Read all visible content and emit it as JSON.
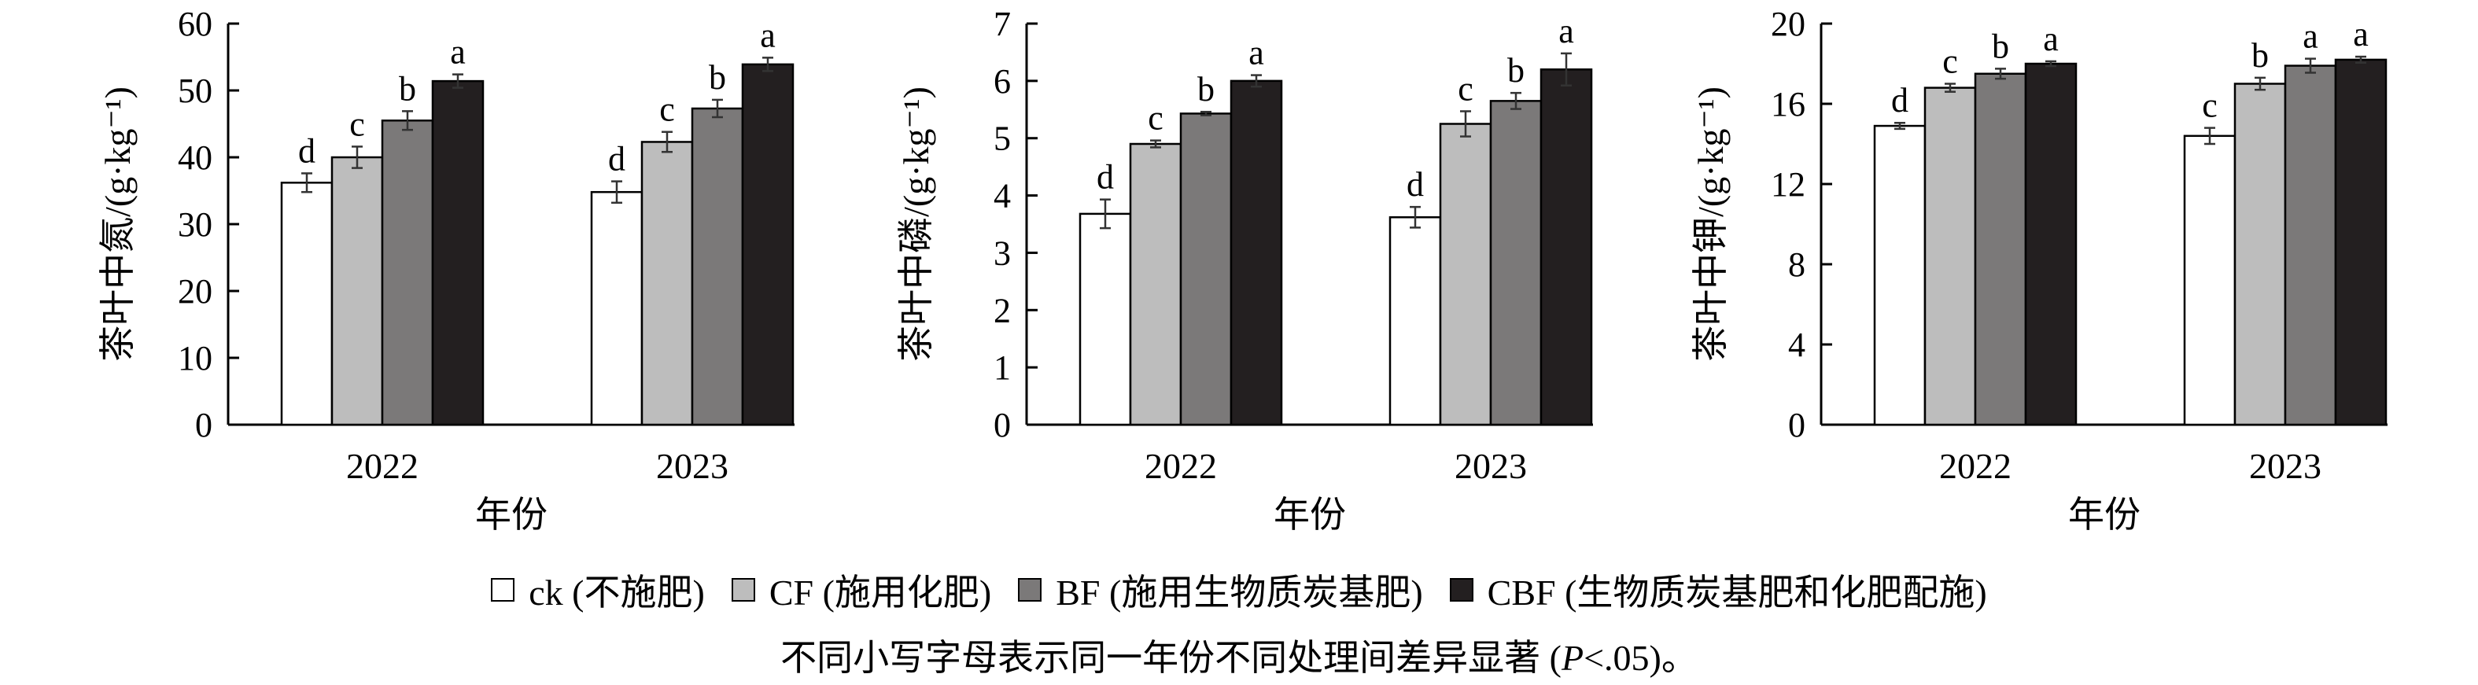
{
  "colors": {
    "axis": "#000000",
    "error_bar": "#333333"
  },
  "legend": [
    {
      "code": "ck",
      "label": "ck (不施肥)",
      "color": "#ffffff"
    },
    {
      "code": "CF",
      "label": "CF (施用化肥)",
      "color": "#bdbdbd"
    },
    {
      "code": "BF",
      "label": "BF (施用生物质炭基肥)",
      "color": "#7b7979"
    },
    {
      "code": "CBF",
      "label": "CBF (生物质炭基肥和化肥配施)",
      "color": "#231f20"
    }
  ],
  "footnote": {
    "prefix": "不同小写字母表示同一年份不同处理间差异显著 (",
    "p_symbol": "P",
    "suffix": "<.05)。"
  },
  "chart_data": [
    {
      "type": "bar",
      "ylabel": "茶叶中氮/(g·kg⁻¹)",
      "xlabel": "年份",
      "categories": [
        "2022",
        "2023"
      ],
      "ylim": [
        0,
        60
      ],
      "yticks": [
        0,
        10,
        20,
        30,
        40,
        50,
        60
      ],
      "series": [
        {
          "name": "ck",
          "values": [
            36.2,
            34.8
          ],
          "errors": [
            1.4,
            1.6
          ],
          "letters": [
            "d",
            "d"
          ]
        },
        {
          "name": "CF",
          "values": [
            40.0,
            42.3
          ],
          "errors": [
            1.6,
            1.5
          ],
          "letters": [
            "c",
            "c"
          ]
        },
        {
          "name": "BF",
          "values": [
            45.5,
            47.3
          ],
          "errors": [
            1.4,
            1.3
          ],
          "letters": [
            "b",
            "b"
          ]
        },
        {
          "name": "CBF",
          "values": [
            51.4,
            53.9
          ],
          "errors": [
            1.0,
            1.0
          ],
          "letters": [
            "a",
            "a"
          ]
        }
      ]
    },
    {
      "type": "bar",
      "ylabel": "茶叶中磷/(g·kg⁻¹)",
      "xlabel": "年份",
      "categories": [
        "2022",
        "2023"
      ],
      "ylim": [
        0,
        7
      ],
      "yticks": [
        0,
        1,
        2,
        3,
        4,
        5,
        6,
        7
      ],
      "series": [
        {
          "name": "ck",
          "values": [
            3.68,
            3.62
          ],
          "errors": [
            0.25,
            0.18
          ],
          "letters": [
            "d",
            "d"
          ]
        },
        {
          "name": "CF",
          "values": [
            4.9,
            5.25
          ],
          "errors": [
            0.06,
            0.22
          ],
          "letters": [
            "c",
            "c"
          ]
        },
        {
          "name": "BF",
          "values": [
            5.43,
            5.65
          ],
          "errors": [
            0.03,
            0.14
          ],
          "letters": [
            "b",
            "b"
          ]
        },
        {
          "name": "CBF",
          "values": [
            6.0,
            6.2
          ],
          "errors": [
            0.1,
            0.28
          ],
          "letters": [
            "a",
            "a"
          ]
        }
      ]
    },
    {
      "type": "bar",
      "ylabel": "茶叶中钾/(g·kg⁻¹)",
      "xlabel": "年份",
      "categories": [
        "2022",
        "2023"
      ],
      "ylim": [
        0,
        20
      ],
      "yticks": [
        0,
        4,
        8,
        12,
        16,
        20
      ],
      "series": [
        {
          "name": "ck",
          "values": [
            14.9,
            14.4
          ],
          "errors": [
            0.15,
            0.4
          ],
          "letters": [
            "d",
            "c"
          ]
        },
        {
          "name": "CF",
          "values": [
            16.8,
            17.0
          ],
          "errors": [
            0.2,
            0.3
          ],
          "letters": [
            "c",
            "b"
          ]
        },
        {
          "name": "BF",
          "values": [
            17.5,
            17.9
          ],
          "errors": [
            0.25,
            0.35
          ],
          "letters": [
            "b",
            "a"
          ]
        },
        {
          "name": "CBF",
          "values": [
            18.0,
            18.2
          ],
          "errors": [
            0.12,
            0.15
          ],
          "letters": [
            "a",
            "a"
          ]
        }
      ]
    }
  ]
}
